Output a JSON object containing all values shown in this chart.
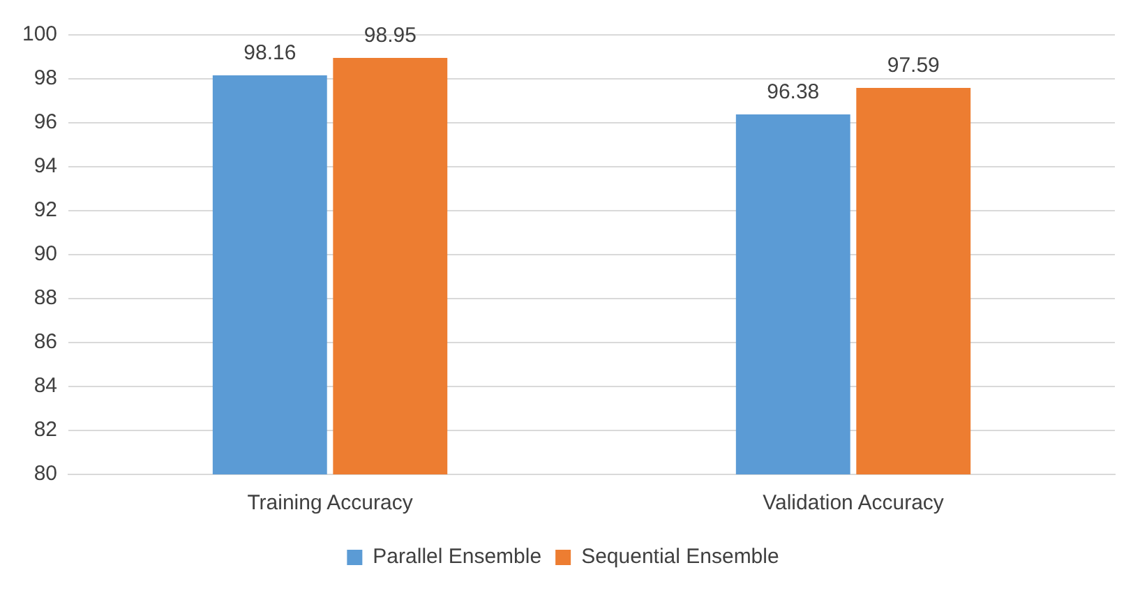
{
  "chart_data": {
    "type": "bar",
    "categories": [
      "Training Accuracy",
      "Validation Accuracy"
    ],
    "series": [
      {
        "name": "Parallel Ensemble",
        "color": "#5b9bd5",
        "values": [
          98.16,
          96.38
        ]
      },
      {
        "name": "Sequential Ensemble",
        "color": "#ed7d31",
        "values": [
          98.95,
          97.59
        ]
      }
    ],
    "ylim": [
      80,
      100
    ],
    "yticks": [
      80,
      82,
      84,
      86,
      88,
      90,
      92,
      94,
      96,
      98,
      100
    ],
    "grid": "y",
    "legend": "bottom",
    "data_labels": true
  }
}
